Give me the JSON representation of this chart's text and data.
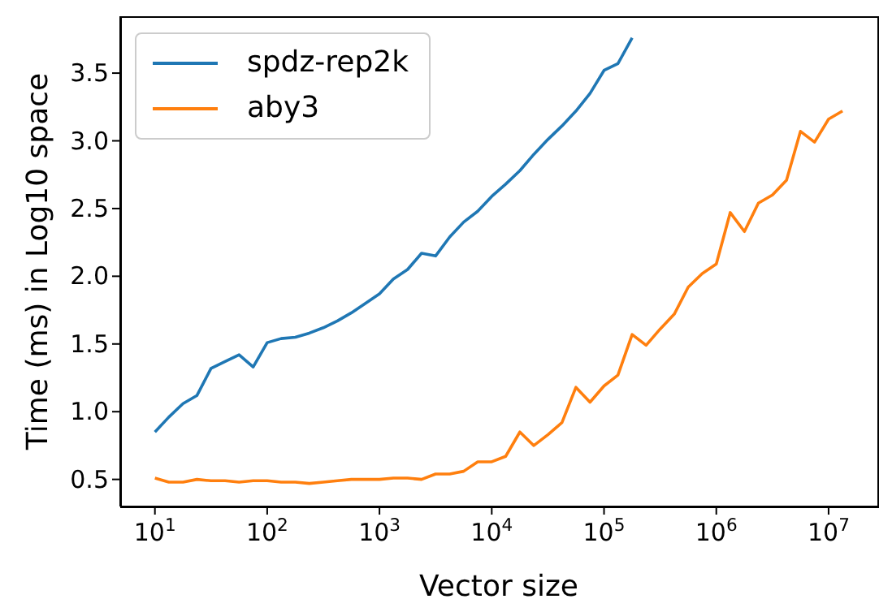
{
  "chart_data": {
    "type": "line",
    "xlabel": "Vector size",
    "ylabel": "Time (ms) in Log10 space",
    "log": "x",
    "grid": false,
    "legend": "top left",
    "marker": "none",
    "line_style": "solid",
    "xlim": [
      4.91,
      27200000
    ],
    "xticks": [
      {
        "value": 10,
        "label": "10$^{1}$"
      },
      {
        "value": 100,
        "label": "10$^{2}$"
      },
      {
        "value": 1000,
        "label": "10$^{3}$"
      },
      {
        "value": 10000,
        "label": "10$^{4}$"
      },
      {
        "value": 100000,
        "label": "10$^{5}$"
      },
      {
        "value": 1000000,
        "label": "10$^{6}$"
      },
      {
        "value": 10000000,
        "label": "10$^{7}$"
      }
    ],
    "ylim": [
      0.3,
      3.92
    ],
    "yticks": [
      0.5,
      {
        "value": 1,
        "label": "1.0"
      },
      1.5,
      {
        "value": 2,
        "label": "2.0"
      },
      2.5,
      {
        "value": 3,
        "label": "3.0"
      },
      3.5
    ],
    "x": [
      10,
      13.3,
      17.8,
      23.7,
      31.6,
      42.2,
      56.2,
      75,
      100,
      133,
      178,
      237,
      316,
      422,
      562,
      750,
      1000,
      1330,
      1780,
      2370,
      3160,
      4220,
      5620,
      7500,
      10000,
      13300,
      17800,
      23700,
      31600,
      42200,
      56200,
      75000,
      100000,
      133000,
      178000,
      237000,
      316000,
      422000,
      562000,
      750000,
      1000000,
      1330000,
      1780000,
      2370000,
      3160000,
      4220000,
      5620000,
      7500000,
      10000000,
      13300000
    ],
    "series": [
      {
        "name": "spdz-rep2k",
        "color": "#1f77b4",
        "values": [
          0.85,
          0.96,
          1.06,
          1.12,
          1.32,
          1.37,
          1.42,
          1.33,
          1.51,
          1.54,
          1.55,
          1.58,
          1.62,
          1.67,
          1.73,
          1.8,
          1.87,
          1.98,
          2.05,
          2.17,
          2.15,
          2.29,
          2.4,
          2.48,
          2.59,
          2.68,
          2.78,
          2.9,
          3.01,
          3.11,
          3.22,
          3.35,
          3.52,
          3.57,
          3.76,
          null,
          null,
          null,
          null,
          null,
          null,
          null,
          null,
          null,
          null,
          null,
          null,
          null,
          null,
          null
        ]
      },
      {
        "name": "aby3",
        "color": "#ff7f0e",
        "values": [
          0.51,
          0.48,
          0.48,
          0.5,
          0.49,
          0.49,
          0.48,
          0.49,
          0.49,
          0.48,
          0.48,
          0.47,
          0.48,
          0.49,
          0.5,
          0.5,
          0.5,
          0.51,
          0.51,
          0.5,
          0.54,
          0.54,
          0.56,
          0.63,
          0.63,
          0.67,
          0.85,
          0.75,
          0.83,
          0.92,
          1.18,
          1.07,
          1.19,
          1.27,
          1.57,
          1.49,
          1.61,
          1.72,
          1.92,
          2.02,
          2.09,
          2.47,
          2.33,
          2.54,
          2.6,
          2.71,
          3.07,
          2.99,
          3.16,
          3.22
        ]
      }
    ]
  }
}
